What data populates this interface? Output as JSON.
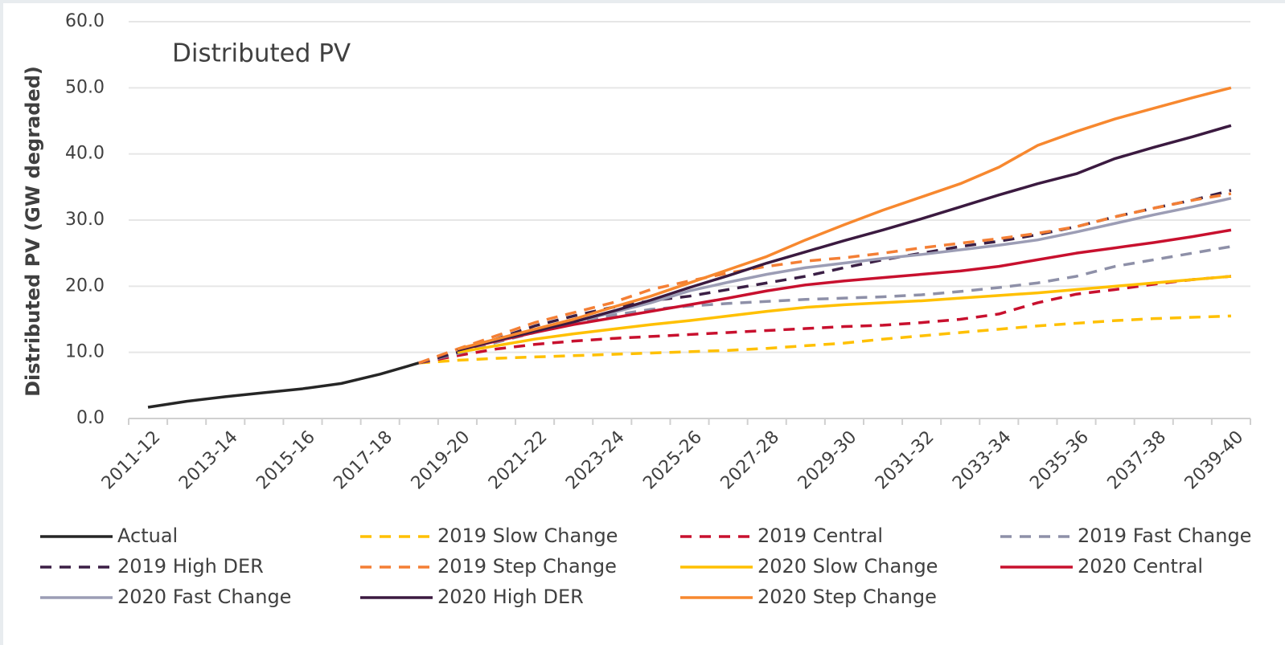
{
  "chart_data": {
    "type": "line",
    "title": "Distributed PV",
    "y_label": "Distributed PV (GW degraded)",
    "categories": [
      "2011-12",
      null,
      "2013-14",
      null,
      "2015-16",
      null,
      "2017-18",
      null,
      "2019-20",
      null,
      "2021-22",
      null,
      "2023-24",
      null,
      "2025-26",
      null,
      "2027-28",
      null,
      "2029-30",
      null,
      "2031-32",
      null,
      "2033-34",
      null,
      "2035-36",
      null,
      "2037-38",
      null,
      "2039-40"
    ],
    "ylim": [
      0,
      60
    ],
    "yticks": [
      {
        "value": 0,
        "label": "0.0"
      },
      {
        "value": 10,
        "label": "10.0"
      },
      {
        "value": 20,
        "label": "20.0"
      },
      {
        "value": 30,
        "label": "30.0"
      },
      {
        "value": 40,
        "label": "40.0"
      },
      {
        "value": 50,
        "label": "50.0"
      },
      {
        "value": 60,
        "label": "60.0"
      }
    ],
    "grid": true,
    "legend": "bottom",
    "series": [
      {
        "name": "Actual",
        "color": "#262626",
        "dashed": false,
        "values": [
          1.7,
          2.6,
          3.3,
          3.9,
          4.5,
          5.3,
          6.7,
          8.4,
          null,
          null,
          null,
          null,
          null,
          null,
          null,
          null,
          null,
          null,
          null,
          null,
          null,
          null,
          null,
          null,
          null,
          null,
          null,
          null,
          null
        ]
      },
      {
        "name": "2019 Slow Change",
        "color": "#ffc000",
        "dashed": true,
        "values": [
          null,
          null,
          null,
          null,
          null,
          null,
          null,
          8.4,
          8.8,
          9.1,
          9.3,
          9.5,
          9.7,
          9.9,
          10.1,
          10.3,
          10.6,
          11.0,
          11.4,
          12.0,
          12.5,
          13.0,
          13.5,
          14.0,
          14.4,
          14.8,
          15.1,
          15.3,
          15.5
        ]
      },
      {
        "name": "2019 Central",
        "color": "#c8102e",
        "dashed": true,
        "values": [
          null,
          null,
          null,
          null,
          null,
          null,
          null,
          8.4,
          9.5,
          10.5,
          11.2,
          11.7,
          12.1,
          12.4,
          12.7,
          13.0,
          13.3,
          13.6,
          13.9,
          14.1,
          14.5,
          15.0,
          15.8,
          17.5,
          18.8,
          19.5,
          20.3,
          21.0,
          21.5
        ]
      },
      {
        "name": "2019 Fast Change",
        "color": "#8e90a8",
        "dashed": true,
        "values": [
          null,
          null,
          null,
          null,
          null,
          null,
          null,
          8.4,
          9.8,
          11.5,
          13.0,
          14.5,
          15.6,
          16.5,
          17.0,
          17.4,
          17.7,
          18.0,
          18.2,
          18.4,
          18.7,
          19.2,
          19.8,
          20.5,
          21.5,
          23.0,
          24.0,
          25.0,
          26.0
        ]
      },
      {
        "name": "2019 High DER",
        "color": "#3b1f45",
        "dashed": true,
        "values": [
          null,
          null,
          null,
          null,
          null,
          null,
          null,
          8.4,
          10.0,
          12.0,
          14.0,
          15.5,
          16.8,
          17.8,
          18.5,
          19.5,
          20.5,
          21.5,
          22.8,
          24.0,
          25.0,
          26.0,
          26.8,
          27.8,
          29.0,
          30.5,
          31.8,
          33.0,
          34.5
        ]
      },
      {
        "name": "2019 Step Change",
        "color": "#f47f35",
        "dashed": true,
        "values": [
          null,
          null,
          null,
          null,
          null,
          null,
          null,
          8.4,
          10.5,
          12.5,
          14.5,
          16.0,
          17.5,
          19.5,
          20.8,
          22.0,
          23.0,
          23.8,
          24.3,
          25.0,
          25.8,
          26.5,
          27.2,
          28.0,
          29.0,
          30.5,
          31.8,
          33.0,
          34.0
        ]
      },
      {
        "name": "2020 Slow Change",
        "color": "#ffc000",
        "dashed": false,
        "values": [
          null,
          null,
          null,
          null,
          null,
          null,
          null,
          null,
          10.0,
          11.0,
          12.0,
          12.8,
          13.5,
          14.2,
          14.8,
          15.5,
          16.2,
          16.8,
          17.2,
          17.5,
          17.8,
          18.2,
          18.6,
          19.0,
          19.5,
          20.0,
          20.5,
          21.0,
          21.5
        ]
      },
      {
        "name": "2020 Central",
        "color": "#c8102e",
        "dashed": false,
        "values": [
          null,
          null,
          null,
          null,
          null,
          null,
          null,
          null,
          10.3,
          11.7,
          13.0,
          14.2,
          15.2,
          16.2,
          17.2,
          18.2,
          19.3,
          20.2,
          20.8,
          21.3,
          21.8,
          22.3,
          23.0,
          24.0,
          25.0,
          25.8,
          26.6,
          27.5,
          28.5
        ]
      },
      {
        "name": "2020 Fast Change",
        "color": "#9c9db5",
        "dashed": false,
        "values": [
          null,
          null,
          null,
          null,
          null,
          null,
          null,
          null,
          10.4,
          11.8,
          13.2,
          14.6,
          16.0,
          17.5,
          19.3,
          20.6,
          21.8,
          22.8,
          23.5,
          24.2,
          24.8,
          25.5,
          26.2,
          27.0,
          28.2,
          29.5,
          30.8,
          32.0,
          33.3
        ]
      },
      {
        "name": "2020 High DER",
        "color": "#3b1a40",
        "dashed": false,
        "values": [
          null,
          null,
          null,
          null,
          null,
          null,
          null,
          null,
          10.3,
          11.8,
          13.2,
          14.6,
          16.2,
          17.9,
          19.8,
          21.6,
          23.5,
          25.2,
          26.9,
          28.5,
          30.2,
          32.0,
          33.8,
          35.5,
          37.0,
          39.3,
          41.0,
          42.6,
          44.3
        ]
      },
      {
        "name": "2020 Step Change",
        "color": "#f7882f",
        "dashed": false,
        "values": [
          null,
          null,
          null,
          null,
          null,
          null,
          null,
          null,
          10.5,
          12.0,
          13.5,
          15.0,
          16.8,
          18.5,
          20.5,
          22.5,
          24.5,
          27.0,
          29.3,
          31.5,
          33.5,
          35.5,
          38.0,
          41.3,
          43.4,
          45.3,
          46.9,
          48.5,
          50.0
        ]
      }
    ]
  }
}
